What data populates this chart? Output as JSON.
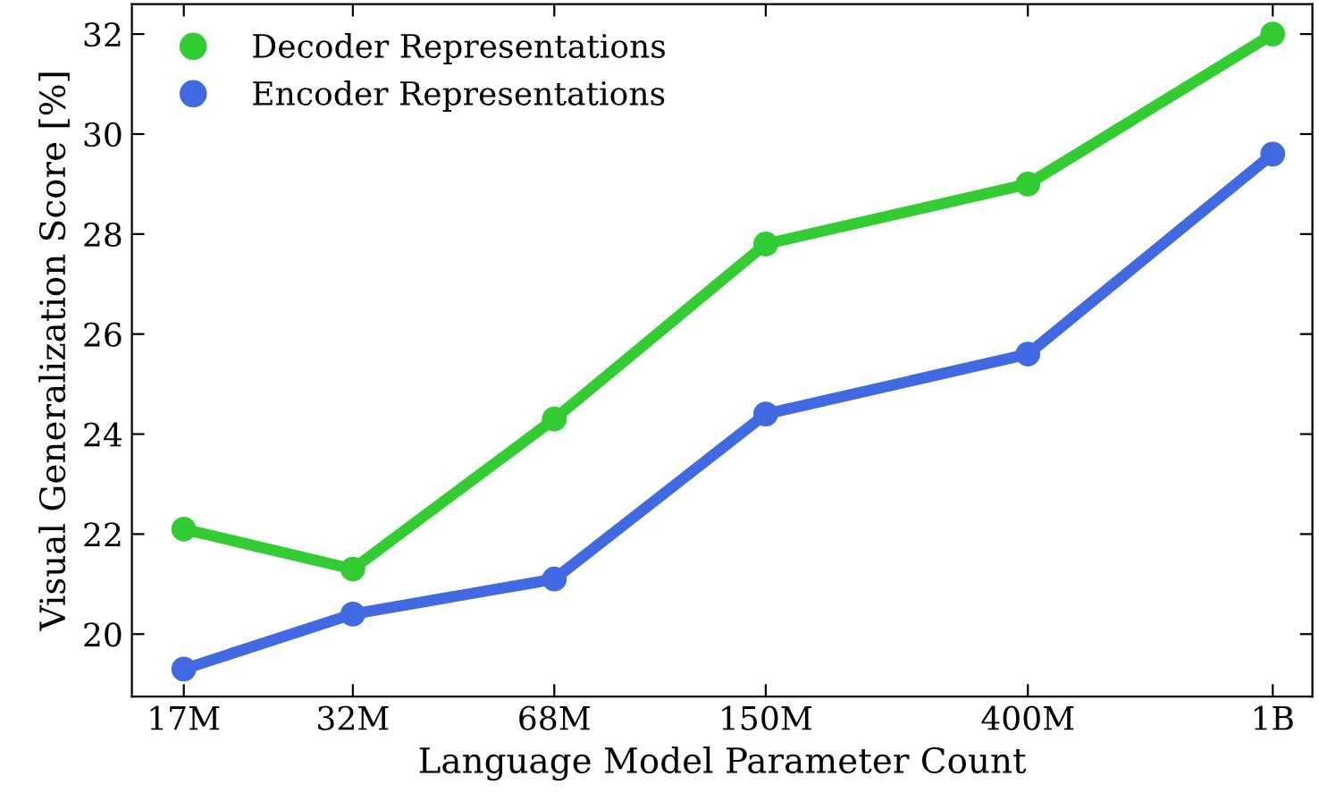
{
  "chart_data": {
    "type": "line",
    "xlabel": "Language Model Parameter Count",
    "ylabel": "Visual Generalization Score [%]",
    "x": [
      17000000,
      32000000,
      68000000,
      150000000,
      400000000,
      1000000000
    ],
    "series": [
      {
        "name": "Decoder Representations",
        "color": "#33cc33",
        "values": [
          22.1,
          21.3,
          24.3,
          27.8,
          29.0,
          32.0
        ]
      },
      {
        "name": "Encoder Representations",
        "color": "#4169e1",
        "values": [
          19.3,
          20.4,
          21.1,
          24.4,
          25.6,
          29.6
        ]
      }
    ],
    "log": "x",
    "xlim": [
      14000000,
      1160000000
    ],
    "xticks": [
      {
        "value": 17000000,
        "label": "17M"
      },
      {
        "value": 32000000,
        "label": "32M"
      },
      {
        "value": 68000000,
        "label": "68M"
      },
      {
        "value": 150000000,
        "label": "150M"
      },
      {
        "value": 400000000,
        "label": "400M"
      },
      {
        "value": 1000000000,
        "label": "1B"
      }
    ],
    "ylim": [
      18.75,
      32.6
    ],
    "yticks": [
      20,
      22,
      24,
      26,
      28,
      30,
      32
    ],
    "marker": "circle",
    "line_style": "solid",
    "legend": "top left",
    "grid": false
  }
}
